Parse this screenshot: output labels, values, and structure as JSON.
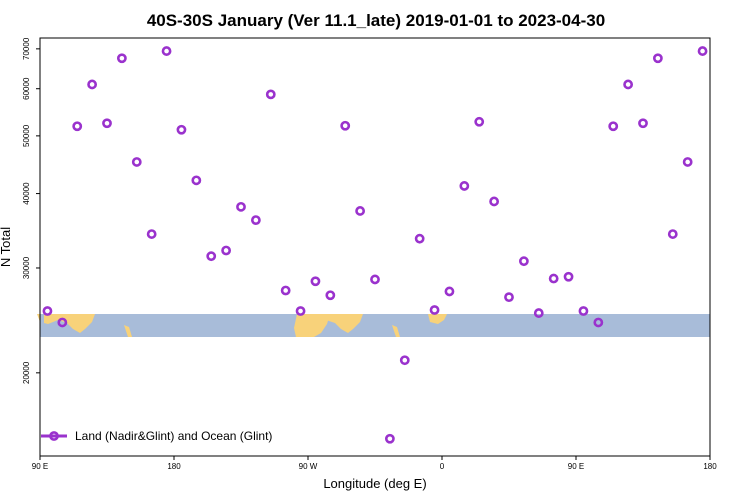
{
  "chart_data": {
    "type": "scatter",
    "title": "40S-30S January (Ver 11.1_late)   2019-01-01 to 2023-04-30",
    "xlabel": "Longitude (deg E)",
    "ylabel": "N Total",
    "xlim": [
      90,
      540
    ],
    "ylim": [
      14500,
      73000
    ],
    "y_scale": "log",
    "x_ticks": [
      {
        "value": 90,
        "label": "90 E"
      },
      {
        "value": 180,
        "label": "180"
      },
      {
        "value": 270,
        "label": "90 W"
      },
      {
        "value": 360,
        "label": "0"
      },
      {
        "value": 450,
        "label": "90 E"
      },
      {
        "value": 540,
        "label": "180"
      }
    ],
    "y_ticks": [
      {
        "value": 20000,
        "label": "20000"
      },
      {
        "value": 30000,
        "label": "30000"
      },
      {
        "value": 40000,
        "label": "40000"
      },
      {
        "value": 50000,
        "label": "50000"
      },
      {
        "value": 60000,
        "label": "60000"
      },
      {
        "value": 70000,
        "label": "70000"
      }
    ],
    "map_strip": {
      "lat_range": "40S-30S",
      "ocean_color": "#a8bcd9",
      "land_color": "#f8d27a"
    },
    "series": [
      {
        "name": "Land (Nadir&Glint) and Ocean (Glint)",
        "color": "#9a32cd",
        "marker": "open-circle",
        "x": [
          95,
          105,
          115,
          125,
          135,
          145,
          155,
          165,
          175,
          185,
          195,
          205,
          215,
          225,
          235,
          245,
          255,
          265,
          275,
          285,
          295,
          305,
          315,
          325,
          335,
          345,
          355,
          365,
          375,
          385,
          395,
          405,
          415,
          425,
          435,
          445,
          455,
          465,
          475,
          485,
          495,
          505,
          515,
          525,
          535
        ],
        "y": [
          25400,
          24300,
          51900,
          61000,
          52500,
          67500,
          45200,
          34200,
          69400,
          51200,
          42100,
          31400,
          32100,
          38000,
          36100,
          58700,
          27500,
          25400,
          28500,
          27000,
          52000,
          37400,
          28700,
          15500,
          21000,
          33600,
          25500,
          27400,
          41200,
          52800,
          38800,
          26800,
          30800,
          25200,
          28800,
          29000,
          25400,
          24300,
          51900,
          61000,
          52500,
          67500,
          34200,
          45200,
          69400
        ]
      }
    ],
    "legend": {
      "position": "bottom-left",
      "entries": [
        "Land (Nadir&Glint) and Ocean (Glint)"
      ]
    }
  }
}
